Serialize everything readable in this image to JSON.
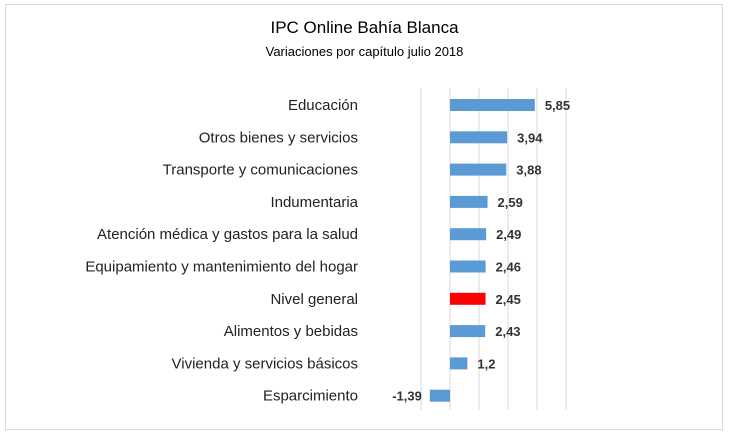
{
  "chart_data": {
    "type": "bar",
    "orientation": "horizontal",
    "title": "IPC Online Bahía Blanca",
    "subtitle": "Variaciones por capítulo julio 2018",
    "categories": [
      "Educación",
      "Otros bienes y servicios",
      "Transporte y comunicaciones",
      "Indumentaria",
      "Atención médica y gastos para la salud",
      "Equipamiento y mantenimiento del hogar",
      "Nivel general",
      "Alimentos y bebidas",
      "Vivienda y servicios básicos",
      "Esparcimiento"
    ],
    "values": [
      5.85,
      3.94,
      3.88,
      2.59,
      2.49,
      2.46,
      2.45,
      2.43,
      1.2,
      -1.39
    ],
    "value_labels": [
      "5,85",
      "3,94",
      "3,88",
      "2,59",
      "2,49",
      "2,46",
      "2,45",
      "2,43",
      "1,2",
      "-1,39"
    ],
    "xlim": [
      -2,
      8
    ],
    "grid": true,
    "colors": {
      "default": "#5b9bd5",
      "highlight": "#ff0000",
      "highlight_category": "Nivel general",
      "grid": "#d9d9d9"
    }
  }
}
